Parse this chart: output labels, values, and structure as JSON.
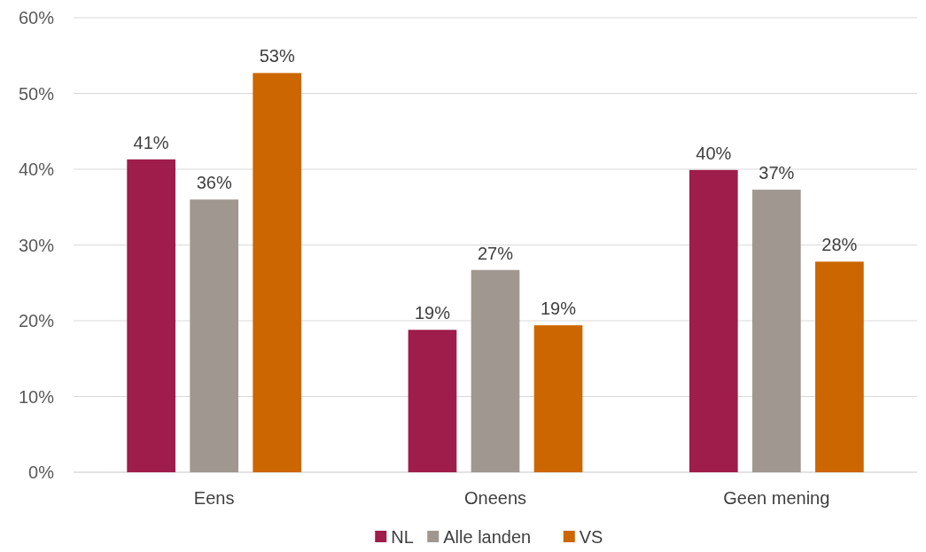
{
  "chart_data": {
    "type": "bar",
    "categories": [
      "Eens",
      "Oneens",
      "Geen mening"
    ],
    "series": [
      {
        "name": "NL",
        "color": "#9e1d4a",
        "values": [
          41.3,
          18.8,
          39.9
        ],
        "value_labels": [
          "41%",
          "19%",
          "40%"
        ]
      },
      {
        "name": "Alle landen",
        "color": "#a09890",
        "values": [
          36.0,
          26.7,
          37.3
        ],
        "value_labels": [
          "36%",
          "27%",
          "37%"
        ]
      },
      {
        "name": "VS",
        "color": "#cc6600",
        "values": [
          52.7,
          19.4,
          27.8
        ],
        "value_labels": [
          "53%",
          "19%",
          "28%"
        ]
      }
    ],
    "ylim": [
      0,
      60
    ],
    "yticks": [
      {
        "value": 0,
        "label": "0%"
      },
      {
        "value": 10,
        "label": "10%"
      },
      {
        "value": 20,
        "label": "20%"
      },
      {
        "value": 30,
        "label": "30%"
      },
      {
        "value": 40,
        "label": "40%"
      },
      {
        "value": 50,
        "label": "50%"
      },
      {
        "value": 60,
        "label": "60%"
      }
    ],
    "grid": "y",
    "legend": "bottom"
  }
}
